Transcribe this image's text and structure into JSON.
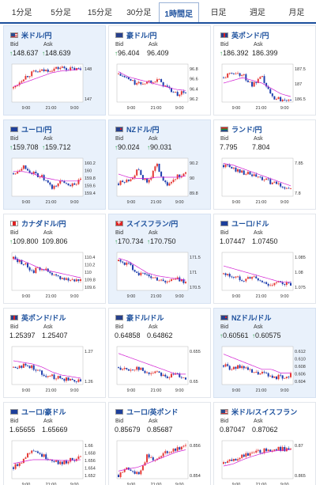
{
  "tabs": [
    {
      "label": "1分足",
      "active": false
    },
    {
      "label": "5分足",
      "active": false
    },
    {
      "label": "15分足",
      "active": false
    },
    {
      "label": "30分足",
      "active": false
    },
    {
      "label": "1時間足",
      "active": true
    },
    {
      "label": "日足",
      "active": false
    },
    {
      "label": "週足",
      "active": false
    },
    {
      "label": "月足",
      "active": false
    }
  ],
  "quotes": [
    {
      "name": "米ドル/円",
      "flag": "us",
      "bid": "148.637",
      "ask": "148.639",
      "bid_up": true,
      "ask_up": true,
      "highlight": true,
      "yticks": [
        "148",
        "147"
      ],
      "xticks": [
        "9:00",
        "21:00",
        "9:00"
      ],
      "ylim": [
        146.7,
        148.9
      ],
      "trend": [
        147.5,
        148.1,
        148.4,
        148.5,
        148.6,
        148.7,
        148.6,
        148.6
      ],
      "ma": [
        147.6,
        147.8,
        148.0,
        148.2,
        148.4,
        148.5,
        148.55,
        148.6
      ]
    },
    {
      "name": "豪ドル/円",
      "flag": "au",
      "bid": "96.404",
      "ask": "96.409",
      "bid_up": true,
      "ask_up": false,
      "highlight": false,
      "yticks": [
        "96.8",
        "96.6",
        "96.4",
        "96.2"
      ],
      "xticks": [
        "9:00",
        "21:00",
        "9:00"
      ],
      "ylim": [
        96.15,
        96.9
      ],
      "trend": [
        96.7,
        96.6,
        96.5,
        96.55,
        96.6,
        96.45,
        96.3,
        96.35
      ],
      "ma": [
        96.75,
        96.65,
        96.6,
        96.55,
        96.5,
        96.45,
        96.4,
        96.38
      ]
    },
    {
      "name": "英ポンド/円",
      "flag": "gb",
      "bid": "186.392",
      "ask": "186.399",
      "bid_up": true,
      "ask_up": false,
      "highlight": false,
      "yticks": [
        "187.5",
        "187",
        "186.5"
      ],
      "xticks": [
        "9:00",
        "21:00",
        "9:00"
      ],
      "ylim": [
        186.3,
        187.7
      ],
      "trend": [
        187.2,
        187.4,
        187.3,
        186.9,
        187.2,
        186.5,
        186.4,
        186.45
      ],
      "ma": [
        187.0,
        187.1,
        187.2,
        187.1,
        187.0,
        186.8,
        186.6,
        186.5
      ]
    },
    {
      "name": "ユーロ/円",
      "flag": "eu",
      "bid": "159.708",
      "ask": "159.712",
      "bid_up": true,
      "ask_up": true,
      "highlight": true,
      "yticks": [
        "160.2",
        "160",
        "159.8",
        "159.6",
        "159.4"
      ],
      "xticks": [
        "9:00",
        "21:00",
        "9:00"
      ],
      "ylim": [
        159.3,
        160.3
      ],
      "trend": [
        159.9,
        160.1,
        159.9,
        159.8,
        159.5,
        159.7,
        159.6,
        159.7
      ],
      "ma": [
        159.95,
        159.95,
        159.9,
        159.8,
        159.75,
        159.7,
        159.7,
        159.7
      ]
    },
    {
      "name": "NZドル/円",
      "flag": "nz",
      "bid": "90.024",
      "ask": "90.031",
      "bid_up": true,
      "ask_up": true,
      "highlight": true,
      "yticks": [
        "90.2",
        "90",
        "89.8"
      ],
      "xticks": [
        "9:00",
        "21:00",
        "9:00"
      ],
      "ylim": [
        89.7,
        90.3
      ],
      "trend": [
        89.9,
        89.95,
        90.1,
        89.9,
        90.2,
        89.85,
        90.0,
        90.05
      ],
      "ma": [
        90.05,
        90.0,
        89.98,
        89.98,
        90.0,
        90.0,
        90.0,
        90.02
      ]
    },
    {
      "name": "ランド/円",
      "flag": "za",
      "bid": "7.795",
      "ask": "7.804",
      "bid_up": false,
      "ask_up": false,
      "highlight": false,
      "yticks": [
        "7.85",
        "7.8"
      ],
      "xticks": [
        "9:00",
        "21:00",
        "9:00"
      ],
      "ylim": [
        7.77,
        7.88
      ],
      "trend": [
        7.86,
        7.85,
        7.84,
        7.83,
        7.82,
        7.81,
        7.8,
        7.79
      ],
      "ma": [
        7.865,
        7.86,
        7.85,
        7.84,
        7.83,
        7.82,
        7.81,
        7.8
      ]
    },
    {
      "name": "カナダドル/円",
      "flag": "ca",
      "bid": "109.800",
      "ask": "109.806",
      "bid_up": true,
      "ask_up": false,
      "highlight": false,
      "yticks": [
        "110.4",
        "110.2",
        "110",
        "109.8",
        "109.6"
      ],
      "xticks": [
        "9:00",
        "21:00",
        "9:00"
      ],
      "ylim": [
        109.55,
        110.45
      ],
      "trend": [
        110.3,
        110.2,
        110.0,
        110.1,
        109.9,
        109.85,
        109.8,
        109.8
      ],
      "ma": [
        110.3,
        110.25,
        110.15,
        110.05,
        110.0,
        109.95,
        109.9,
        109.85
      ]
    },
    {
      "name": "スイスフラン/円",
      "flag": "ch",
      "bid": "170.734",
      "ask": "170.750",
      "bid_up": true,
      "ask_up": true,
      "highlight": true,
      "yticks": [
        "171.5",
        "171",
        "170.5"
      ],
      "xticks": [
        "9:00",
        "21:00",
        "9:00"
      ],
      "ylim": [
        170.4,
        171.7
      ],
      "trend": [
        171.4,
        171.3,
        171.0,
        170.9,
        170.8,
        170.7,
        170.8,
        170.7
      ],
      "ma": [
        171.5,
        171.4,
        171.2,
        171.0,
        170.9,
        170.85,
        170.8,
        170.75
      ]
    },
    {
      "name": "ユーロ/ドル",
      "flag": "eu",
      "bid": "1.07447",
      "ask": "1.07450",
      "bid_up": false,
      "ask_up": false,
      "highlight": false,
      "yticks": [
        "1.085",
        "1.08",
        "1.075"
      ],
      "xticks": [
        "9:00",
        "21:00",
        "9:00"
      ],
      "ylim": [
        1.073,
        1.087
      ],
      "trend": [
        1.079,
        1.078,
        1.077,
        1.078,
        1.076,
        1.075,
        1.076,
        1.075
      ],
      "ma": [
        1.082,
        1.081,
        1.08,
        1.079,
        1.078,
        1.077,
        1.076,
        1.076
      ]
    },
    {
      "name": "英ポンド/ドル",
      "flag": "gb",
      "bid": "1.25397",
      "ask": "1.25407",
      "bid_up": false,
      "ask_up": false,
      "highlight": false,
      "yticks": [
        "1.27",
        "1.26"
      ],
      "xticks": [
        "9:00",
        "21:00",
        "9:00"
      ],
      "ylim": [
        1.251,
        1.275
      ],
      "trend": [
        1.262,
        1.263,
        1.262,
        1.258,
        1.256,
        1.255,
        1.254,
        1.254
      ],
      "ma": [
        1.266,
        1.265,
        1.264,
        1.262,
        1.259,
        1.257,
        1.256,
        1.255
      ]
    },
    {
      "name": "豪ドル/ドル",
      "flag": "au",
      "bid": "0.64858",
      "ask": "0.64862",
      "bid_up": false,
      "ask_up": false,
      "highlight": false,
      "yticks": [
        "0.655",
        "0.65"
      ],
      "xticks": [
        "9:00",
        "21:00",
        "9:00"
      ],
      "ylim": [
        0.647,
        0.658
      ],
      "trend": [
        0.652,
        0.651,
        0.652,
        0.65,
        0.651,
        0.649,
        0.65,
        0.649
      ],
      "ma": [
        0.656,
        0.655,
        0.654,
        0.653,
        0.652,
        0.651,
        0.65,
        0.65
      ]
    },
    {
      "name": "NZドル/ドル",
      "flag": "nz",
      "bid": "0.60561",
      "ask": "0.60575",
      "bid_up": true,
      "ask_up": true,
      "highlight": true,
      "yticks": [
        "0.612",
        "0.610",
        "0.608",
        "0.606",
        "0.604"
      ],
      "xticks": [
        "9:00",
        "21:00",
        "9:00"
      ],
      "ylim": [
        0.603,
        0.613
      ],
      "trend": [
        0.608,
        0.607,
        0.608,
        0.606,
        0.606,
        0.605,
        0.605,
        0.6055
      ],
      "ma": [
        0.611,
        0.61,
        0.609,
        0.608,
        0.607,
        0.607,
        0.606,
        0.606
      ]
    },
    {
      "name": "ユーロ/豪ドル",
      "flag": "eu",
      "bid": "1.65655",
      "ask": "1.65669",
      "bid_up": false,
      "ask_up": false,
      "highlight": false,
      "yticks": [
        "1.66",
        "1.658",
        "1.656",
        "1.654",
        "1.652"
      ],
      "xticks": [
        "9:00",
        "21:00",
        "9:00"
      ],
      "ylim": [
        1.651,
        1.661
      ],
      "trend": [
        1.654,
        1.656,
        1.659,
        1.657,
        1.656,
        1.655,
        1.656,
        1.6565
      ],
      "ma": [
        1.655,
        1.6555,
        1.656,
        1.656,
        1.656,
        1.6558,
        1.6558,
        1.656
      ]
    },
    {
      "name": "ユーロ/英ポンド",
      "flag": "eu",
      "bid": "0.85679",
      "ask": "0.85687",
      "bid_up": false,
      "ask_up": false,
      "highlight": false,
      "yticks": [
        "0.856",
        "0.854"
      ],
      "xticks": [
        "9:00",
        "21:00",
        "9:00"
      ],
      "ylim": [
        0.8525,
        0.8575
      ],
      "trend": [
        0.853,
        0.854,
        0.853,
        0.8555,
        0.855,
        0.856,
        0.8565,
        0.8568
      ],
      "ma": [
        0.8535,
        0.8538,
        0.854,
        0.8545,
        0.855,
        0.8555,
        0.856,
        0.8563
      ]
    },
    {
      "name": "米ドル/スイスフラン",
      "flag": "us",
      "bid": "0.87047",
      "ask": "0.87062",
      "bid_up": false,
      "ask_up": false,
      "highlight": false,
      "yticks": [
        "0.87",
        "0.865"
      ],
      "xticks": [
        "9:00",
        "21:00",
        "9:00"
      ],
      "ylim": [
        0.8635,
        0.8725
      ],
      "trend": [
        0.867,
        0.868,
        0.869,
        0.8695,
        0.87,
        0.8705,
        0.8705,
        0.8705
      ],
      "ma": [
        0.8665,
        0.867,
        0.868,
        0.8688,
        0.8695,
        0.87,
        0.8702,
        0.8704
      ]
    }
  ],
  "labels": {
    "bid": "Bid",
    "ask": "Ask",
    "up_arrow": "↑"
  },
  "colors": {
    "accent": "#1b4f9c",
    "up": "#e53935",
    "down": "#1e3fae",
    "ma": "#d21ed2",
    "highlight_bg": "#e9f1fb"
  }
}
